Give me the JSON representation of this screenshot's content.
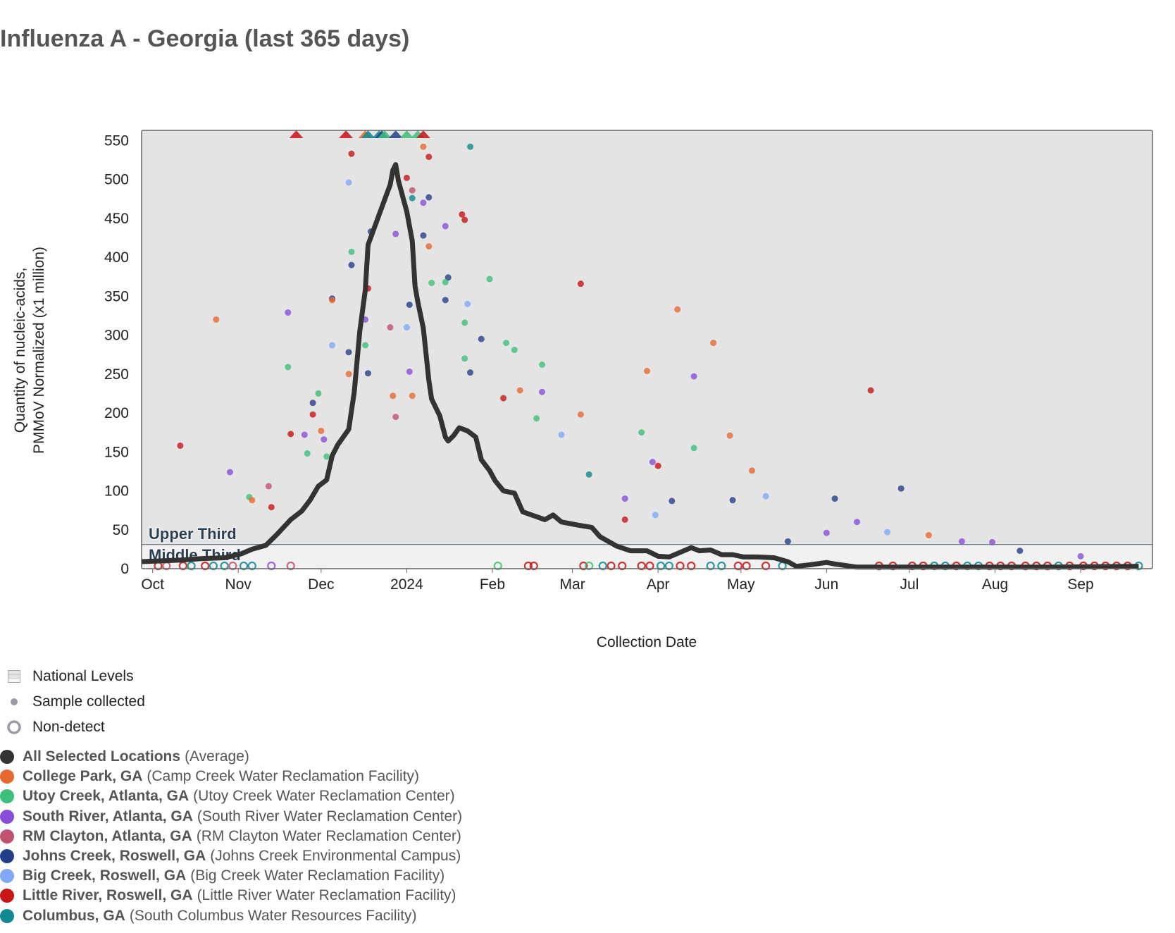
{
  "title": "Influenza A - Georgia (last 365 days)",
  "chart_data": {
    "type": "scatter",
    "title": "Influenza A - Georgia (last 365 days)",
    "xlabel": "Collection Date",
    "ylabel": [
      "Quantity of nucleic-acids,",
      "PMMoV Normalized (x1 million)"
    ],
    "xlim": [
      "2023-09-27",
      "2024-09-27"
    ],
    "ylim": [
      0,
      563
    ],
    "yticks": [
      0,
      50,
      100,
      150,
      200,
      250,
      300,
      350,
      400,
      450,
      500,
      550
    ],
    "xticks": [
      {
        "date": "2023-10-01",
        "label": "Oct"
      },
      {
        "date": "2023-11-01",
        "label": "Nov"
      },
      {
        "date": "2023-12-01",
        "label": "Dec"
      },
      {
        "date": "2024-01-01",
        "label": "2024"
      },
      {
        "date": "2024-02-01",
        "label": "Feb"
      },
      {
        "date": "2024-03-01",
        "label": "Mar"
      },
      {
        "date": "2024-04-01",
        "label": "Apr"
      },
      {
        "date": "2024-05-01",
        "label": "May"
      },
      {
        "date": "2024-06-01",
        "label": "Jun"
      },
      {
        "date": "2024-07-01",
        "label": "Jul"
      },
      {
        "date": "2024-08-01",
        "label": "Aug"
      },
      {
        "date": "2024-09-01",
        "label": "Sep"
      }
    ],
    "grid": false,
    "national_levels": {
      "threshold": 31,
      "upper_label": "Upper Third",
      "middle_label": "Middle Third",
      "upper_color": "#e4e4e4",
      "middle_color": "#f1f1f1"
    },
    "average": {
      "name": "All Selected Locations",
      "color": "#333333",
      "points": [
        [
          "2023-09-27",
          9
        ],
        [
          "2023-10-11",
          11
        ],
        [
          "2023-10-19",
          13
        ],
        [
          "2023-10-27",
          14
        ],
        [
          "2023-11-02",
          19
        ],
        [
          "2023-11-06",
          25
        ],
        [
          "2023-11-11",
          30
        ],
        [
          "2023-11-15",
          44
        ],
        [
          "2023-11-20",
          63
        ],
        [
          "2023-11-24",
          74
        ],
        [
          "2023-11-27",
          88
        ],
        [
          "2023-11-30",
          106
        ],
        [
          "2023-12-03",
          114
        ],
        [
          "2023-12-05",
          145
        ],
        [
          "2023-12-07",
          159
        ],
        [
          "2023-12-11",
          179
        ],
        [
          "2023-12-13",
          227
        ],
        [
          "2023-12-15",
          305
        ],
        [
          "2023-12-17",
          358
        ],
        [
          "2023-12-18",
          416
        ],
        [
          "2023-12-21",
          445
        ],
        [
          "2023-12-24",
          474
        ],
        [
          "2023-12-26",
          493
        ],
        [
          "2023-12-27",
          512
        ],
        [
          "2023-12-28",
          519
        ],
        [
          "2023-12-29",
          498
        ],
        [
          "2024-01-01",
          459
        ],
        [
          "2024-01-03",
          421
        ],
        [
          "2024-01-04",
          363
        ],
        [
          "2024-01-05",
          343
        ],
        [
          "2024-01-07",
          309
        ],
        [
          "2024-01-09",
          242
        ],
        [
          "2024-01-10",
          218
        ],
        [
          "2024-01-13",
          196
        ],
        [
          "2024-01-15",
          169
        ],
        [
          "2024-01-16",
          164
        ],
        [
          "2024-01-18",
          171
        ],
        [
          "2024-01-20",
          181
        ],
        [
          "2024-01-23",
          177
        ],
        [
          "2024-01-26",
          169
        ],
        [
          "2024-01-28",
          140
        ],
        [
          "2024-01-31",
          126
        ],
        [
          "2024-02-02",
          113
        ],
        [
          "2024-02-05",
          100
        ],
        [
          "2024-02-09",
          97
        ],
        [
          "2024-02-12",
          73
        ],
        [
          "2024-02-16",
          68
        ],
        [
          "2024-02-20",
          63
        ],
        [
          "2024-02-23",
          69
        ],
        [
          "2024-02-26",
          60
        ],
        [
          "2024-03-03",
          56
        ],
        [
          "2024-03-08",
          53
        ],
        [
          "2024-03-11",
          41
        ],
        [
          "2024-03-17",
          29
        ],
        [
          "2024-03-22",
          23
        ],
        [
          "2024-03-28",
          23
        ],
        [
          "2024-04-01",
          16
        ],
        [
          "2024-04-05",
          15
        ],
        [
          "2024-04-09",
          21
        ],
        [
          "2024-04-13",
          27
        ],
        [
          "2024-04-16",
          23
        ],
        [
          "2024-04-20",
          24
        ],
        [
          "2024-04-24",
          18
        ],
        [
          "2024-04-28",
          18
        ],
        [
          "2024-05-02",
          15
        ],
        [
          "2024-05-07",
          15
        ],
        [
          "2024-05-13",
          14
        ],
        [
          "2024-05-18",
          9
        ],
        [
          "2024-05-21",
          3
        ],
        [
          "2024-05-26",
          5
        ],
        [
          "2024-06-01",
          8
        ],
        [
          "2024-06-04",
          6
        ],
        [
          "2024-06-12",
          2
        ],
        [
          "2024-06-28",
          2
        ],
        [
          "2024-07-28",
          2
        ],
        [
          "2024-08-22",
          2
        ],
        [
          "2024-09-22",
          3
        ]
      ]
    },
    "sites": [
      {
        "name": "College Park, GA",
        "facility": "(Camp Creek Water Reclamation Facility)",
        "color": "#e8692f"
      },
      {
        "name": "Utoy Creek, Atlanta, GA",
        "facility": "(Utoy Creek Water Reclamation Center)",
        "color": "#3cbf7a"
      },
      {
        "name": "South River, Atlanta, GA",
        "facility": "(South River Water Reclamation Center)",
        "color": "#8a4ed6"
      },
      {
        "name": "RM Clayton, Atlanta, GA",
        "facility": "(RM Clayton Water Reclamation Center)",
        "color": "#c2506f"
      },
      {
        "name": "Johns Creek, Roswell, GA",
        "facility": "(Johns Creek Environmental Campus)",
        "color": "#243f8a"
      },
      {
        "name": "Big Creek, Roswell, GA",
        "facility": "(Big Creek Water Reclamation Facility)",
        "color": "#7fa8f7"
      },
      {
        "name": "Little River, Roswell, GA",
        "facility": "(Little River Water Reclamation Facility)",
        "color": "#c81515"
      },
      {
        "name": "Columbus, GA",
        "facility": "(South Columbus Water Resources Facility)",
        "color": "#0e8a90"
      }
    ],
    "samples": [
      [
        "2023-10-11",
        158,
        6
      ],
      [
        "2023-10-24",
        320,
        0
      ],
      [
        "2023-10-29",
        124,
        2
      ],
      [
        "2023-11-05",
        92,
        1
      ],
      [
        "2023-11-06",
        88,
        0
      ],
      [
        "2023-11-12",
        106,
        3
      ],
      [
        "2023-11-13",
        79,
        6
      ],
      [
        "2023-11-19",
        329,
        2
      ],
      [
        "2023-11-19",
        259,
        1
      ],
      [
        "2023-11-20",
        173,
        6
      ],
      [
        "2023-11-25",
        172,
        2
      ],
      [
        "2023-11-26",
        148,
        1
      ],
      [
        "2023-11-28",
        213,
        4
      ],
      [
        "2023-11-28",
        198,
        6
      ],
      [
        "2023-11-30",
        225,
        1
      ],
      [
        "2023-12-01",
        177,
        0
      ],
      [
        "2023-12-02",
        166,
        2
      ],
      [
        "2023-12-03",
        144,
        1
      ],
      [
        "2023-12-05",
        347,
        4
      ],
      [
        "2023-12-05",
        345,
        0
      ],
      [
        "2023-12-05",
        287,
        5
      ],
      [
        "2023-12-11",
        496,
        5
      ],
      [
        "2023-12-12",
        533,
        6
      ],
      [
        "2023-12-12",
        407,
        1
      ],
      [
        "2023-12-12",
        390,
        4
      ],
      [
        "2023-12-11",
        278,
        4
      ],
      [
        "2023-12-11",
        250,
        0
      ],
      [
        "2023-12-17",
        320,
        2
      ],
      [
        "2023-12-18",
        360,
        6
      ],
      [
        "2023-12-17",
        287,
        1
      ],
      [
        "2023-12-18",
        251,
        4
      ],
      [
        "2023-12-19",
        433,
        4
      ],
      [
        "2023-12-26",
        310,
        3
      ],
      [
        "2023-12-28",
        430,
        2
      ],
      [
        "2023-12-27",
        222,
        0
      ],
      [
        "2023-12-28",
        195,
        3
      ],
      [
        "2024-01-01",
        502,
        6
      ],
      [
        "2024-01-03",
        486,
        3
      ],
      [
        "2024-01-03",
        476,
        7
      ],
      [
        "2024-01-02",
        339,
        4
      ],
      [
        "2024-01-01",
        310,
        5
      ],
      [
        "2024-01-02",
        253,
        2
      ],
      [
        "2024-01-03",
        222,
        0
      ],
      [
        "2024-01-07",
        542,
        0
      ],
      [
        "2024-01-09",
        529,
        6
      ],
      [
        "2024-01-09",
        477,
        4
      ],
      [
        "2024-01-07",
        470,
        2
      ],
      [
        "2024-01-07",
        428,
        4
      ],
      [
        "2024-01-09",
        414,
        0
      ],
      [
        "2024-01-10",
        367,
        1
      ],
      [
        "2024-01-16",
        374,
        4
      ],
      [
        "2024-01-15",
        440,
        2
      ],
      [
        "2024-01-15",
        368,
        1
      ],
      [
        "2024-01-15",
        345,
        4
      ],
      [
        "2024-01-21",
        455,
        6
      ],
      [
        "2024-01-22",
        448,
        6
      ],
      [
        "2024-01-24",
        542,
        7
      ],
      [
        "2024-01-23",
        340,
        5
      ],
      [
        "2024-01-22",
        316,
        1
      ],
      [
        "2024-01-28",
        295,
        4
      ],
      [
        "2024-01-31",
        372,
        1
      ],
      [
        "2024-01-22",
        270,
        1
      ],
      [
        "2024-01-24",
        252,
        4
      ],
      [
        "2024-02-06",
        290,
        1
      ],
      [
        "2024-02-09",
        281,
        1
      ],
      [
        "2024-02-05",
        219,
        6
      ],
      [
        "2024-02-11",
        229,
        0
      ],
      [
        "2024-02-19",
        262,
        1
      ],
      [
        "2024-02-19",
        227,
        2
      ],
      [
        "2024-02-17",
        193,
        1
      ],
      [
        "2024-03-04",
        366,
        6
      ],
      [
        "2024-03-04",
        198,
        0
      ],
      [
        "2024-02-26",
        172,
        5
      ],
      [
        "2024-03-07",
        121,
        7
      ],
      [
        "2024-03-20",
        90,
        2
      ],
      [
        "2024-03-20",
        63,
        6
      ],
      [
        "2024-03-28",
        254,
        0
      ],
      [
        "2024-03-26",
        175,
        1
      ],
      [
        "2024-03-30",
        137,
        2
      ],
      [
        "2024-03-31",
        69,
        5
      ],
      [
        "2024-04-01",
        132,
        6
      ],
      [
        "2024-04-06",
        87,
        4
      ],
      [
        "2024-04-08",
        333,
        0
      ],
      [
        "2024-04-14",
        247,
        2
      ],
      [
        "2024-04-14",
        155,
        1
      ],
      [
        "2024-04-21",
        290,
        0
      ],
      [
        "2024-04-27",
        171,
        0
      ],
      [
        "2024-04-28",
        88,
        4
      ],
      [
        "2024-05-05",
        126,
        0
      ],
      [
        "2024-05-10",
        93,
        5
      ],
      [
        "2024-05-18",
        35,
        4
      ],
      [
        "2024-06-01",
        46,
        2
      ],
      [
        "2024-06-04",
        90,
        4
      ],
      [
        "2024-06-12",
        60,
        2
      ],
      [
        "2024-06-17",
        229,
        6
      ],
      [
        "2024-06-23",
        47,
        5
      ],
      [
        "2024-06-28",
        103,
        4
      ],
      [
        "2024-07-08",
        43,
        0
      ],
      [
        "2024-07-20",
        35,
        2
      ],
      [
        "2024-07-31",
        34,
        2
      ],
      [
        "2024-08-10",
        23,
        4
      ],
      [
        "2024-09-01",
        16,
        2
      ]
    ],
    "non_detects": [
      [
        "2023-10-03",
        6
      ],
      [
        "2023-10-06",
        3
      ],
      [
        "2023-10-12",
        6
      ],
      [
        "2023-10-15",
        7
      ],
      [
        "2023-10-20",
        6
      ],
      [
        "2023-10-23",
        7
      ],
      [
        "2023-10-27",
        7
      ],
      [
        "2023-10-30",
        3
      ],
      [
        "2023-11-03",
        7
      ],
      [
        "2023-11-06",
        7
      ],
      [
        "2023-11-13",
        2
      ],
      [
        "2023-11-20",
        3
      ],
      [
        "2024-02-03",
        1
      ],
      [
        "2024-02-14",
        6
      ],
      [
        "2024-02-16",
        6
      ],
      [
        "2024-03-05",
        6
      ],
      [
        "2024-03-07",
        1
      ],
      [
        "2024-03-12",
        7
      ],
      [
        "2024-03-15",
        6
      ],
      [
        "2024-03-19",
        6
      ],
      [
        "2024-03-26",
        6
      ],
      [
        "2024-03-29",
        6
      ],
      [
        "2024-04-02",
        7
      ],
      [
        "2024-04-05",
        7
      ],
      [
        "2024-04-09",
        6
      ],
      [
        "2024-04-13",
        6
      ],
      [
        "2024-04-20",
        7
      ],
      [
        "2024-04-24",
        7
      ],
      [
        "2024-04-30",
        6
      ],
      [
        "2024-05-03",
        6
      ],
      [
        "2024-05-10",
        6
      ],
      [
        "2024-05-16",
        7
      ],
      [
        "2024-06-20",
        6
      ],
      [
        "2024-06-25",
        6
      ],
      [
        "2024-07-02",
        6
      ],
      [
        "2024-07-06",
        6
      ],
      [
        "2024-07-10",
        7
      ],
      [
        "2024-07-14",
        7
      ],
      [
        "2024-07-18",
        6
      ],
      [
        "2024-07-22",
        7
      ],
      [
        "2024-07-26",
        7
      ],
      [
        "2024-07-30",
        6
      ],
      [
        "2024-08-03",
        6
      ],
      [
        "2024-08-07",
        6
      ],
      [
        "2024-08-12",
        6
      ],
      [
        "2024-08-16",
        6
      ],
      [
        "2024-08-20",
        6
      ],
      [
        "2024-08-24",
        7
      ],
      [
        "2024-08-28",
        6
      ],
      [
        "2024-09-02",
        6
      ],
      [
        "2024-09-06",
        6
      ],
      [
        "2024-09-10",
        6
      ],
      [
        "2024-09-14",
        6
      ],
      [
        "2024-09-18",
        6
      ],
      [
        "2024-09-22",
        7
      ]
    ],
    "above_range": [
      [
        "2023-11-22",
        6
      ],
      [
        "2023-12-10",
        6
      ],
      [
        "2023-12-17",
        0
      ],
      [
        "2023-12-18",
        7
      ],
      [
        "2023-12-22",
        7
      ],
      [
        "2023-12-23",
        4
      ],
      [
        "2023-12-24",
        1
      ],
      [
        "2023-12-28",
        4
      ],
      [
        "2024-01-01",
        1
      ],
      [
        "2024-01-05",
        1
      ],
      [
        "2024-01-07",
        6
      ]
    ]
  },
  "legend": {
    "national_levels": "National Levels",
    "sample_collected": "Sample collected",
    "non_detect": "Non-detect",
    "average_name": "All Selected Locations",
    "average_note": "(Average)",
    "average_color": "#333333"
  }
}
